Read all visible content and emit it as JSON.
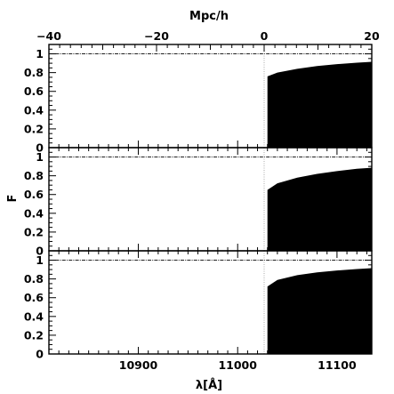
{
  "chart_data": {
    "type": "area",
    "top_axis": {
      "label": "Mpc/h",
      "range": [
        -40,
        20
      ],
      "ticks": [
        -40,
        -20,
        0,
        20
      ],
      "tick_labels": [
        "−40",
        "−20",
        "0",
        "20"
      ]
    },
    "x_axis": {
      "label": "λ[Å]",
      "range": [
        10810,
        11135
      ],
      "ticks": [
        10900,
        11000,
        11100
      ],
      "tick_labels": [
        "10900",
        "11000",
        "11100"
      ]
    },
    "y_axis": {
      "label": "F",
      "range": [
        0,
        1.1
      ],
      "ticks": [
        0,
        0.2,
        0.4,
        0.6,
        0.8,
        1
      ],
      "tick_labels": [
        "0",
        "0.2",
        "0.4",
        "0.6",
        "0.8",
        "1"
      ]
    },
    "reference_line_y": 1,
    "reference_line_x_mpc": 0,
    "panels": [
      {
        "x": [
          11030,
          11040,
          11060,
          11080,
          11100,
          11120,
          11135
        ],
        "y": [
          0.76,
          0.8,
          0.84,
          0.87,
          0.89,
          0.905,
          0.915
        ]
      },
      {
        "x": [
          11030,
          11040,
          11060,
          11080,
          11100,
          11120,
          11135
        ],
        "y": [
          0.65,
          0.72,
          0.78,
          0.82,
          0.85,
          0.875,
          0.885
        ]
      },
      {
        "x": [
          11030,
          11040,
          11060,
          11080,
          11100,
          11120,
          11135
        ],
        "y": [
          0.72,
          0.79,
          0.84,
          0.87,
          0.89,
          0.905,
          0.915
        ]
      }
    ]
  }
}
